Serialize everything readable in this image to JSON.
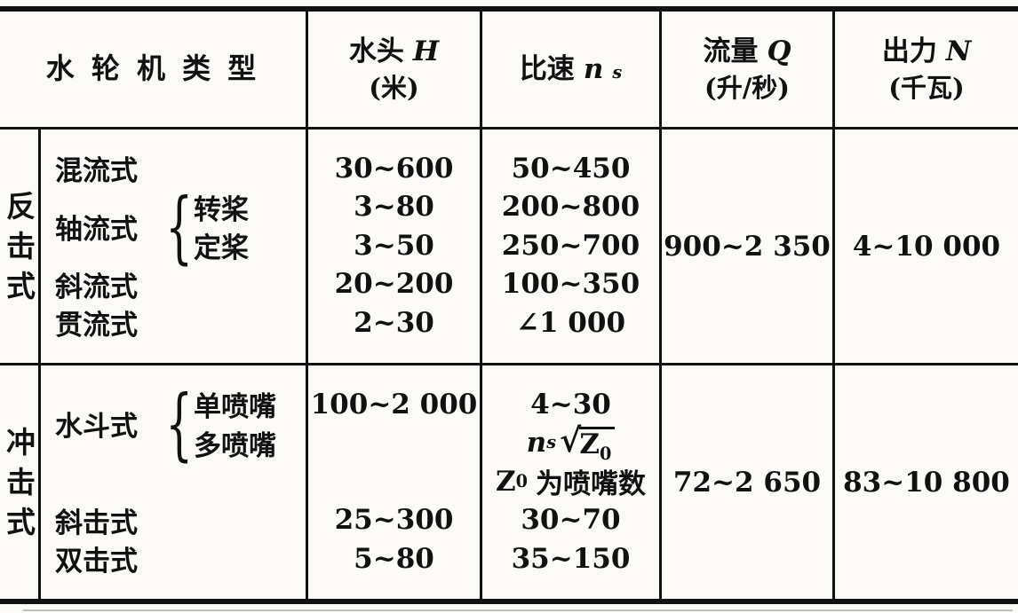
{
  "colors": {
    "ink": "#111111",
    "paper": "#fbfaf7"
  },
  "header": {
    "type_label": "水 轮 机 类 型",
    "head": {
      "name": "水头",
      "symbol": "H",
      "unit": "(米)"
    },
    "speed": {
      "name": "比速",
      "symbol": "n",
      "symbol_sub": "s"
    },
    "flow": {
      "name": "流量",
      "symbol": "Q",
      "unit": "(升/秒)"
    },
    "power": {
      "name": "出力",
      "symbol": "N",
      "unit": "(千瓦)"
    }
  },
  "brace": "{",
  "sections": [
    {
      "group": [
        "反",
        "击",
        "式"
      ],
      "types": {
        "row1": "混流式",
        "branch_label": "轴流式",
        "branch_items": [
          "转桨",
          "定桨"
        ],
        "row4": "斜流式",
        "row5": "贯流式"
      },
      "head_values": [
        "30~600",
        "3~80",
        "3~50",
        "20~200",
        "2~30"
      ],
      "speed_values": [
        "50~450",
        "200~800",
        "250~700",
        "100~350",
        "∠1 000"
      ],
      "flow_value": "900~2 350",
      "power_value": "4~10 000"
    },
    {
      "group": [
        "冲",
        "击",
        "式"
      ],
      "types": {
        "branch_label": "水斗式",
        "branch_items": [
          "单喷嘴",
          "多喷嘴"
        ],
        "row4": "斜击式",
        "row5": "双击式"
      },
      "head_values": [
        "100~2 000",
        "",
        "",
        "25~300",
        "5~80"
      ],
      "speed_values": [
        "4~30",
        "",
        "",
        "30~70",
        "35~150"
      ],
      "speed_formula": {
        "symbol": "n",
        "symbol_sub": "s",
        "radical": "√",
        "radicand": "Z",
        "radicand_sub": "0"
      },
      "speed_note": {
        "symbol": "Z",
        "symbol_sub": "0",
        "text": "为喷嘴数"
      },
      "flow_value": "72~2 650",
      "power_value": "83~10 800"
    }
  ]
}
